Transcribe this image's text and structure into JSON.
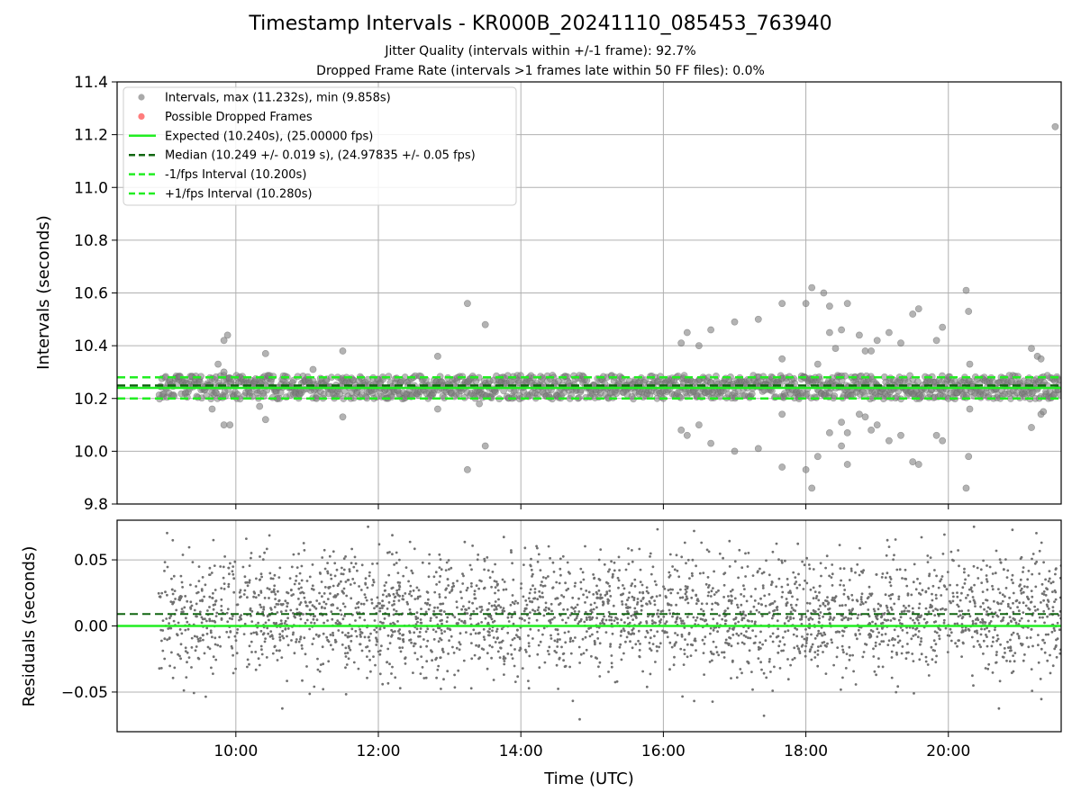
{
  "title": "Timestamp Intervals - KR000B_20241110_085453_763940",
  "subtitle_jitter": "Jitter Quality (intervals within +/-1 frame): 92.7%",
  "subtitle_dropped": "Dropped Frame Rate (intervals >1 frames late within 50 FF files): 0.0%",
  "colors": {
    "interval_points": "#808080",
    "dropped_points": "#ff4444",
    "expected": "#22ee22",
    "median": "#116611",
    "fps_band": "#22ee22",
    "grid": "#b0b0b0"
  },
  "chart_data": [
    {
      "type": "scatter",
      "panel": "intervals",
      "ylabel": "Intervals (seconds)",
      "xlabel": "",
      "xlim": [
        "08:20",
        "21:35"
      ],
      "ylim": [
        9.8,
        11.4
      ],
      "yticks": [
        "9.8",
        "10.0",
        "10.2",
        "10.4",
        "10.6",
        "10.8",
        "11.0",
        "11.2",
        "11.4"
      ],
      "grid": true,
      "legend_position": "upper-left",
      "legend": [
        {
          "label": "Intervals, max (11.232s), min (9.858s)",
          "kind": "point",
          "color": "#9a9a9a"
        },
        {
          "label": "Possible Dropped Frames",
          "kind": "point",
          "color": "#ff6666"
        },
        {
          "label": "Expected (10.240s), (25.00000 fps)",
          "kind": "solid",
          "color": "#22ee22"
        },
        {
          "label": "Median (10.249 +/- 0.019 s), (24.97835 +/- 0.05 fps)",
          "kind": "dashed",
          "color": "#116611"
        },
        {
          "label": "-1/fps Interval (10.200s)",
          "kind": "dashed",
          "color": "#22ee22"
        },
        {
          "label": "+1/fps Interval (10.280s)",
          "kind": "dashed",
          "color": "#22ee22"
        }
      ],
      "lines": {
        "expected": 10.24,
        "median": 10.249,
        "minus_fps": 10.2,
        "plus_fps": 10.28
      },
      "data_range": {
        "start": "08:55",
        "end": "21:35"
      },
      "band": {
        "center": 10.243,
        "spread": 0.045
      },
      "outliers": [
        {
          "x": "09:50",
          "y": 10.42
        },
        {
          "x": "09:53",
          "y": 10.44
        },
        {
          "x": "09:50",
          "y": 10.1
        },
        {
          "x": "09:55",
          "y": 10.1
        },
        {
          "x": "09:40",
          "y": 10.16
        },
        {
          "x": "10:20",
          "y": 10.17
        },
        {
          "x": "10:25",
          "y": 10.37
        },
        {
          "x": "10:25",
          "y": 10.12
        },
        {
          "x": "11:30",
          "y": 10.38
        },
        {
          "x": "11:30",
          "y": 10.13
        },
        {
          "x": "12:50",
          "y": 10.36
        },
        {
          "x": "12:50",
          "y": 10.16
        },
        {
          "x": "13:15",
          "y": 10.56
        },
        {
          "x": "13:15",
          "y": 9.93
        },
        {
          "x": "13:30",
          "y": 10.48
        },
        {
          "x": "13:30",
          "y": 10.02
        },
        {
          "x": "13:25",
          "y": 10.18
        },
        {
          "x": "16:15",
          "y": 10.41
        },
        {
          "x": "16:20",
          "y": 10.45
        },
        {
          "x": "16:20",
          "y": 10.06
        },
        {
          "x": "16:15",
          "y": 10.08
        },
        {
          "x": "16:30",
          "y": 10.4
        },
        {
          "x": "16:30",
          "y": 10.1
        },
        {
          "x": "16:40",
          "y": 10.46
        },
        {
          "x": "16:40",
          "y": 10.03
        },
        {
          "x": "17:00",
          "y": 10.49
        },
        {
          "x": "17:00",
          "y": 10.0
        },
        {
          "x": "17:20",
          "y": 10.5
        },
        {
          "x": "17:20",
          "y": 10.01
        },
        {
          "x": "17:40",
          "y": 10.56
        },
        {
          "x": "17:40",
          "y": 9.94
        },
        {
          "x": "17:40",
          "y": 10.35
        },
        {
          "x": "17:40",
          "y": 10.14
        },
        {
          "x": "18:00",
          "y": 10.56
        },
        {
          "x": "18:00",
          "y": 9.93
        },
        {
          "x": "18:05",
          "y": 10.62
        },
        {
          "x": "18:05",
          "y": 9.86
        },
        {
          "x": "18:10",
          "y": 10.33
        },
        {
          "x": "18:15",
          "y": 10.6
        },
        {
          "x": "18:20",
          "y": 10.55
        },
        {
          "x": "18:20",
          "y": 10.45
        },
        {
          "x": "18:20",
          "y": 10.07
        },
        {
          "x": "18:10",
          "y": 9.98
        },
        {
          "x": "18:25",
          "y": 10.39
        },
        {
          "x": "18:30",
          "y": 10.46
        },
        {
          "x": "18:30",
          "y": 10.11
        },
        {
          "x": "18:30",
          "y": 10.02
        },
        {
          "x": "18:35",
          "y": 10.56
        },
        {
          "x": "18:35",
          "y": 9.95
        },
        {
          "x": "18:35",
          "y": 10.07
        },
        {
          "x": "18:45",
          "y": 10.44
        },
        {
          "x": "18:45",
          "y": 10.14
        },
        {
          "x": "18:50",
          "y": 10.38
        },
        {
          "x": "18:50",
          "y": 10.13
        },
        {
          "x": "18:55",
          "y": 10.38
        },
        {
          "x": "18:55",
          "y": 10.08
        },
        {
          "x": "19:00",
          "y": 10.42
        },
        {
          "x": "19:00",
          "y": 10.1
        },
        {
          "x": "19:10",
          "y": 10.45
        },
        {
          "x": "19:10",
          "y": 10.04
        },
        {
          "x": "19:20",
          "y": 10.41
        },
        {
          "x": "19:30",
          "y": 10.52
        },
        {
          "x": "19:30",
          "y": 9.96
        },
        {
          "x": "19:35",
          "y": 10.54
        },
        {
          "x": "19:35",
          "y": 9.95
        },
        {
          "x": "19:20",
          "y": 10.06
        },
        {
          "x": "19:50",
          "y": 10.42
        },
        {
          "x": "19:50",
          "y": 10.06
        },
        {
          "x": "19:55",
          "y": 10.47
        },
        {
          "x": "19:55",
          "y": 10.04
        },
        {
          "x": "20:15",
          "y": 10.61
        },
        {
          "x": "20:15",
          "y": 9.86
        },
        {
          "x": "20:17",
          "y": 10.53
        },
        {
          "x": "20:17",
          "y": 9.98
        },
        {
          "x": "20:18",
          "y": 10.16
        },
        {
          "x": "20:18",
          "y": 10.33
        },
        {
          "x": "21:10",
          "y": 10.39
        },
        {
          "x": "21:10",
          "y": 10.09
        },
        {
          "x": "21:15",
          "y": 10.36
        },
        {
          "x": "21:18",
          "y": 10.35
        },
        {
          "x": "21:18",
          "y": 10.14
        },
        {
          "x": "21:20",
          "y": 10.15
        },
        {
          "x": "21:30",
          "y": 11.23
        },
        {
          "x": "09:45",
          "y": 10.33
        },
        {
          "x": "09:50",
          "y": 10.3
        },
        {
          "x": "11:05",
          "y": 10.31
        }
      ]
    },
    {
      "type": "scatter",
      "panel": "residuals",
      "ylabel": "Residuals (seconds)",
      "xlabel": "Time (UTC)",
      "xlim": [
        "08:20",
        "21:35"
      ],
      "ylim": [
        -0.08,
        0.08
      ],
      "yticks": [
        "−0.05",
        "0.00",
        "0.05"
      ],
      "ytick_values": [
        -0.05,
        0.0,
        0.05
      ],
      "xticks": [
        "10:00",
        "12:00",
        "14:00",
        "16:00",
        "18:00",
        "20:00"
      ],
      "grid": true,
      "lines": {
        "zero": 0.0,
        "median_offset": 0.009
      },
      "data_range": {
        "start": "08:55",
        "end": "21:35"
      },
      "spread": 0.025
    }
  ]
}
